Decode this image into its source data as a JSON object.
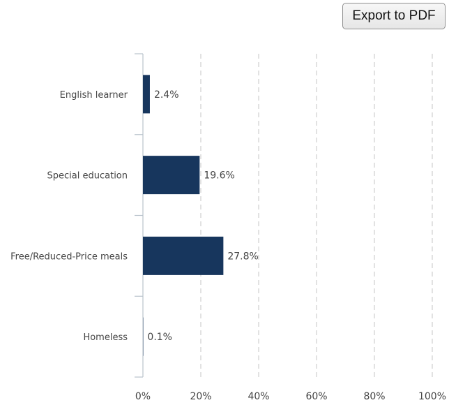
{
  "toolbar": {
    "export_label": "Export to PDF"
  },
  "chart_data": {
    "type": "bar",
    "orientation": "horizontal",
    "categories": [
      "English learner",
      "Special education",
      "Free/Reduced-Price meals",
      "Homeless"
    ],
    "values": [
      2.4,
      19.6,
      27.8,
      0.1
    ],
    "data_labels": [
      "2.4%",
      "19.6%",
      "27.8%",
      "0.1%"
    ],
    "xlim": [
      0,
      100
    ],
    "x_ticks": [
      0,
      20,
      40,
      60,
      80,
      100
    ],
    "x_tick_labels": [
      "0%",
      "20%",
      "40%",
      "60%",
      "80%",
      "100%"
    ],
    "grid": "vertical-dashed",
    "legend": "none",
    "bar_color": "#17365d"
  }
}
